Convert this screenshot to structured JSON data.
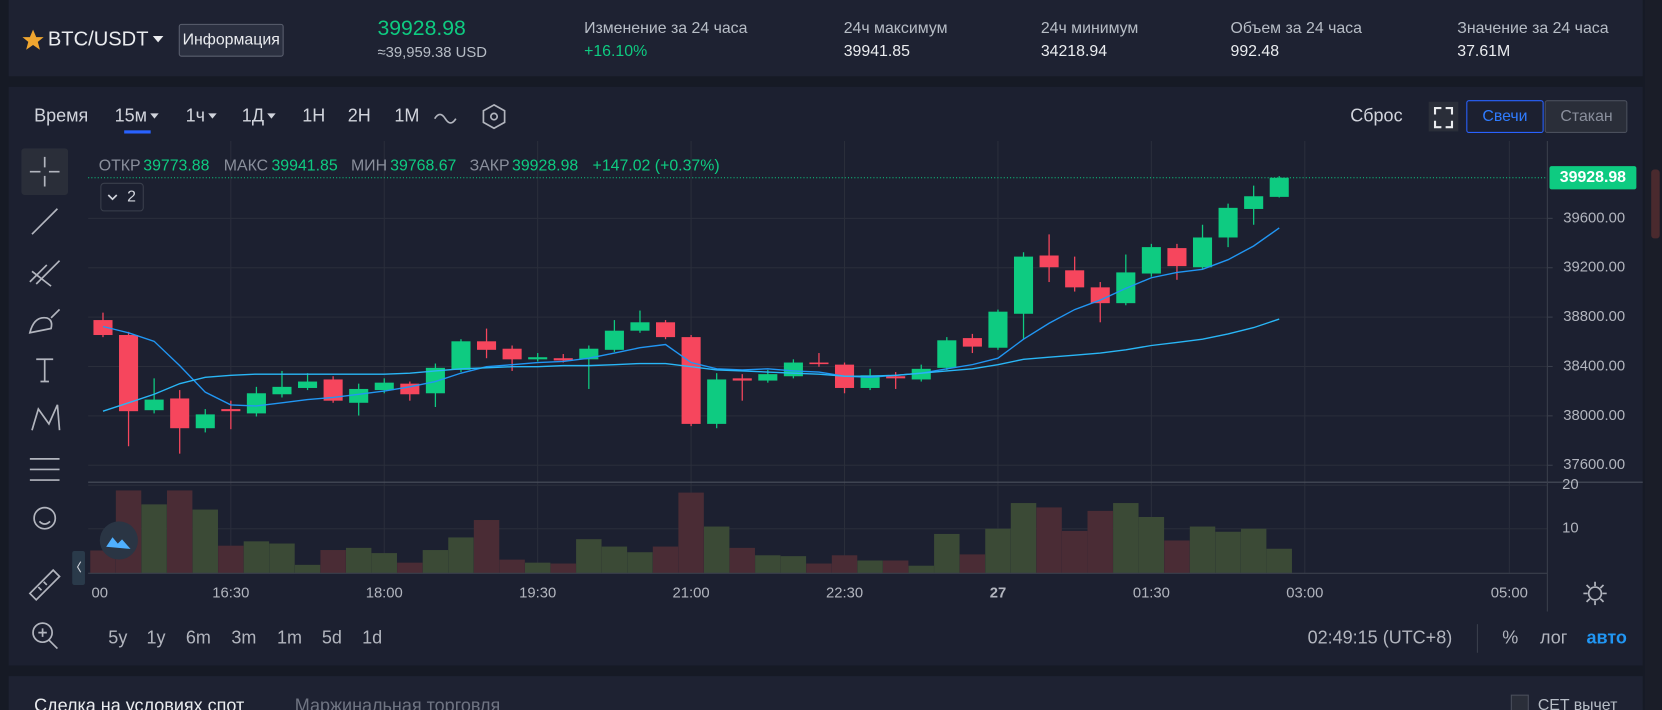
{
  "header": {
    "pair": "BTC/USDT",
    "info_button": "Информация",
    "price": "39928.98",
    "price_usd": "≈39,959.38 USD",
    "stats": [
      {
        "label": "Изменение за 24 часа",
        "value": "+16.10%"
      },
      {
        "label": "24ч максимум",
        "value": "39941.85"
      },
      {
        "label": "24ч минимум",
        "value": "34218.94"
      },
      {
        "label": "Объем за 24 часа",
        "value": "992.48"
      },
      {
        "label": "Значение за 24 часа",
        "value": "37.61M"
      }
    ]
  },
  "toolbar": {
    "time_label": "Время",
    "intervals": [
      "15м",
      "1ч",
      "1Д",
      "1Н",
      "2Н",
      "1М"
    ],
    "reset": "Сброс",
    "views": [
      "Свечи",
      "Стакан"
    ]
  },
  "indicator_count": "2",
  "ohlc_legend": {
    "labels": [
      "ОТКР",
      "МАКС",
      "МИН",
      "ЗАКР"
    ],
    "change": "+147.02 (+0.37%)"
  },
  "chart_data": {
    "type": "candlestick",
    "categories": [
      null,
      null,
      null,
      null,
      null,
      "16:30",
      null,
      null,
      null,
      null,
      null,
      "18:00",
      null,
      null,
      null,
      null,
      null,
      "19:30",
      null,
      null,
      null,
      null,
      null,
      "21:00",
      null,
      null,
      null,
      null,
      null,
      "22:30",
      null,
      null,
      null,
      null,
      null,
      "27",
      null,
      null,
      null,
      null,
      null,
      "01:30",
      null,
      null,
      null,
      null,
      null
    ],
    "extra_time_labels": [
      "00",
      "03:00",
      "05:00"
    ],
    "open": [
      38776,
      38655,
      38046,
      38141,
      37900,
      38055,
      38020,
      38175,
      38226,
      38295,
      38106,
      38209,
      38261,
      38183,
      38372,
      38604,
      38544,
      38458,
      38467,
      38458,
      38535,
      38690,
      38758,
      38638,
      37935,
      38304,
      38286,
      38321,
      38432,
      38415,
      38226,
      38321,
      38295,
      38389,
      38630,
      38552,
      38827,
      39299,
      39179,
      39041,
      38913,
      39153,
      39359,
      39204,
      39445,
      39676,
      39773.88
    ],
    "high": [
      38836,
      38681,
      38304,
      38209,
      38055,
      38123,
      38235,
      38364,
      38346,
      38321,
      38261,
      38304,
      38278,
      38424,
      38621,
      38707,
      38570,
      38509,
      38501,
      38570,
      38776,
      38853,
      38776,
      38655,
      38346,
      38338,
      38372,
      38458,
      38509,
      38432,
      38381,
      38355,
      38415,
      38638,
      38664,
      38861,
      39325,
      39470,
      39290,
      39084,
      39307,
      39393,
      39393,
      39548,
      39719,
      39865,
      39941.85
    ],
    "low": [
      38638,
      37754,
      38020,
      37694,
      37866,
      37892,
      37995,
      38149,
      38209,
      38106,
      38003,
      38183,
      38123,
      38072,
      38355,
      38467,
      38364,
      38441,
      38432,
      38218,
      38518,
      38673,
      38621,
      37917,
      37900,
      38123,
      38269,
      38304,
      38398,
      38183,
      38209,
      38218,
      38278,
      38372,
      38509,
      38535,
      38621,
      39084,
      39007,
      38758,
      38896,
      39127,
      39102,
      39187,
      39367,
      39548,
      39768.67
    ],
    "close": [
      38655,
      38038,
      38132,
      37900,
      38012,
      38038,
      38183,
      38235,
      38278,
      38123,
      38218,
      38269,
      38175,
      38389,
      38604,
      38535,
      38458,
      38475,
      38449,
      38544,
      38690,
      38758,
      38638,
      37935,
      38295,
      38286,
      38338,
      38432,
      38424,
      38226,
      38329,
      38304,
      38381,
      38612,
      38561,
      38844,
      39290,
      39204,
      39041,
      38913,
      39162,
      39367,
      39213,
      39445,
      39685,
      39779,
      39928.98
    ],
    "up_color": "#0ecb81",
    "down_color": "#f6465d",
    "series": [
      {
        "color": "#2196f3",
        "values": [
          38724,
          38673,
          38604,
          38407,
          38192,
          38089,
          38080,
          38106,
          38132,
          38149,
          38175,
          38201,
          38235,
          38278,
          38346,
          38398,
          38415,
          38432,
          38441,
          38467,
          38509,
          38552,
          38578,
          38432,
          38381,
          38372,
          38381,
          38364,
          38355,
          38321,
          38312,
          38329,
          38346,
          38381,
          38415,
          38467,
          38621,
          38750,
          38861,
          38938,
          39033,
          39119,
          39162,
          39187,
          39265,
          39376,
          39522
        ]
      },
      {
        "color": "#29b6f6",
        "values": [
          38038,
          38106,
          38175,
          38261,
          38312,
          38329,
          38338,
          38338,
          38338,
          38338,
          38338,
          38338,
          38346,
          38364,
          38381,
          38389,
          38398,
          38398,
          38407,
          38407,
          38415,
          38424,
          38424,
          38398,
          38372,
          38364,
          38355,
          38346,
          38338,
          38321,
          38321,
          38329,
          38346,
          38364,
          38381,
          38415,
          38458,
          38475,
          38492,
          38509,
          38535,
          38570,
          38595,
          38621,
          38664,
          38715,
          38784
        ]
      }
    ],
    "ylim": [
      37463,
      40227
    ],
    "yticks": [
      {
        "value": 37600,
        "label": "37600.00"
      },
      {
        "value": 38000,
        "label": "38000.00"
      },
      {
        "value": 38400,
        "label": "38400.00"
      },
      {
        "value": 38800,
        "label": "38800.00"
      },
      {
        "value": 39200,
        "label": "39200.00"
      },
      {
        "value": 39600,
        "label": "39600.00"
      }
    ],
    "grid": true,
    "volume": {
      "values": [
        5.0,
        18.8,
        15.6,
        18.8,
        14.4,
        6.1,
        7.1,
        6.6,
        1.7,
        5.1,
        5.6,
        4.4,
        2.2,
        5.1,
        8.0,
        12.0,
        2.9,
        2.2,
        2.0,
        7.6,
        5.9,
        4.6,
        5.9,
        18.3,
        10.5,
        5.6,
        3.9,
        3.7,
        2.0,
        3.9,
        2.7,
        2.7,
        1.5,
        8.8,
        4.1,
        10.0,
        15.9,
        14.9,
        9.5,
        14.1,
        15.9,
        12.7,
        7.3,
        10.5,
        9.3,
        10.0,
        5.4
      ],
      "up_color": "#3b4a36",
      "down_color": "#4a2c35",
      "ylim": [
        0,
        20.7
      ],
      "yticks": [
        10,
        20
      ]
    }
  },
  "footer": {
    "ranges": [
      "5y",
      "1y",
      "6m",
      "3m",
      "1m",
      "5d",
      "1d"
    ],
    "clock": "02:49:15 (UTC+8)",
    "scale_modes": [
      "%",
      "лог",
      "авто"
    ]
  },
  "bottom_tabs": [
    "Сделка на условиях спот",
    "Маржинальная торговля"
  ],
  "checkbox_label": "CET вычет"
}
